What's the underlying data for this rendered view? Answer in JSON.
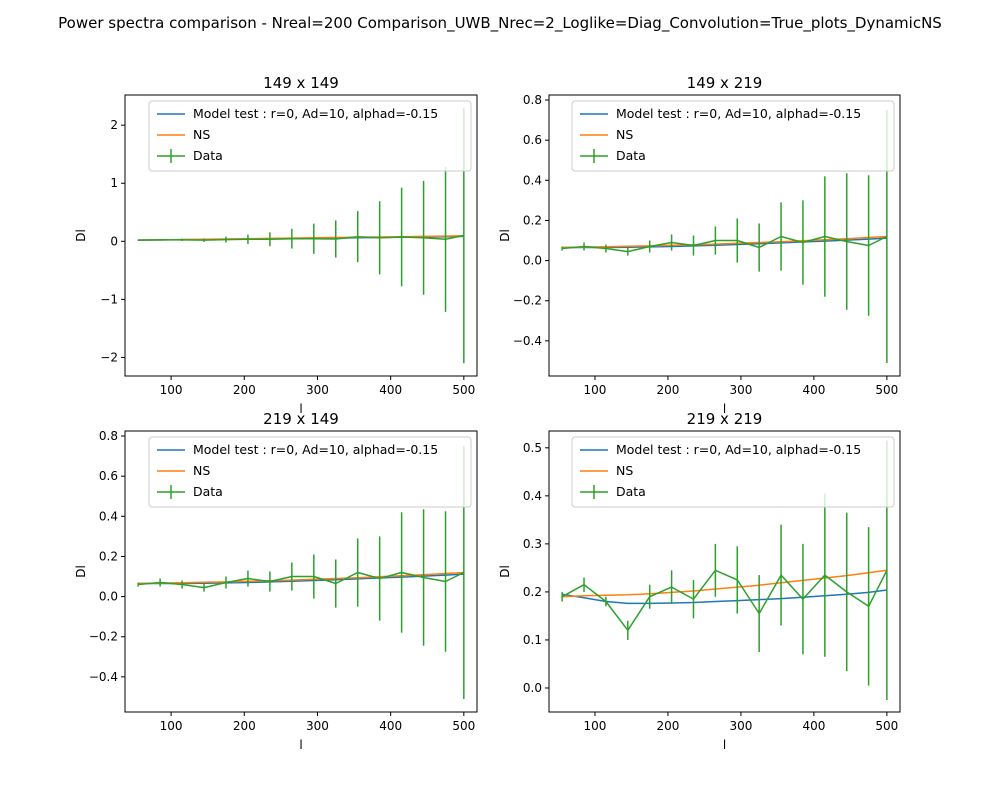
{
  "suptitle": "Power spectra comparison - Nreal=200 Comparison_UWB_Nrec=2_Loglike=Diag_Convolution=True_plots_DynamicNS",
  "colors": {
    "model": "#1f77b4",
    "ns": "#ff7f0e",
    "data": "#2ca02c"
  },
  "chart_data": [
    {
      "type": "line",
      "title": "149 x 149",
      "xlabel": "l",
      "ylabel": "Dl",
      "xlim": [
        37,
        518
      ],
      "ylim": [
        -2.32,
        2.52
      ],
      "xticks": [
        100,
        200,
        300,
        400,
        500
      ],
      "yticks": [
        -2,
        -1,
        0,
        1,
        2
      ],
      "legend": [
        "Model test : r=0, Ad=10, alphad=-0.15",
        "NS",
        "Data"
      ],
      "legend_position": "top-right",
      "x": [
        55,
        85,
        115,
        145,
        175,
        205,
        235,
        265,
        295,
        325,
        355,
        385,
        415,
        445,
        475,
        500
      ],
      "series": [
        {
          "name": "Model test : r=0, Ad=10, alphad=-0.15",
          "values": [
            0.02,
            0.025,
            0.03,
            0.03,
            0.035,
            0.04,
            0.045,
            0.05,
            0.055,
            0.055,
            0.06,
            0.065,
            0.07,
            0.075,
            0.08,
            0.085
          ]
        },
        {
          "name": "NS",
          "values": [
            0.02,
            0.025,
            0.03,
            0.035,
            0.04,
            0.045,
            0.05,
            0.055,
            0.06,
            0.065,
            0.07,
            0.075,
            0.08,
            0.085,
            0.09,
            0.095
          ]
        },
        {
          "name": "Data",
          "values": [
            0.02,
            0.025,
            0.025,
            0.02,
            0.03,
            0.035,
            0.035,
            0.045,
            0.045,
            0.04,
            0.08,
            0.06,
            0.075,
            0.06,
            0.035,
            0.1
          ],
          "errors": [
            0.01,
            0.015,
            0.02,
            0.03,
            0.05,
            0.08,
            0.12,
            0.17,
            0.26,
            0.32,
            0.44,
            0.63,
            0.85,
            0.98,
            1.25,
            2.2
          ]
        }
      ]
    },
    {
      "type": "line",
      "title": "149 x 219",
      "xlabel": "l",
      "ylabel": "Dl",
      "xlim": [
        37,
        518
      ],
      "ylim": [
        -0.575,
        0.825
      ],
      "xticks": [
        100,
        200,
        300,
        400,
        500
      ],
      "yticks": [
        -0.4,
        -0.2,
        0.0,
        0.2,
        0.4,
        0.6,
        0.8
      ],
      "legend": [
        "Model test : r=0, Ad=10, alphad=-0.15",
        "NS",
        "Data"
      ],
      "legend_position": "top-right",
      "x": [
        55,
        85,
        115,
        145,
        175,
        205,
        235,
        265,
        295,
        325,
        355,
        385,
        415,
        445,
        475,
        500
      ],
      "series": [
        {
          "name": "Model test : r=0, Ad=10, alphad=-0.15",
          "values": [
            0.065,
            0.065,
            0.065,
            0.066,
            0.068,
            0.07,
            0.073,
            0.076,
            0.08,
            0.084,
            0.088,
            0.093,
            0.097,
            0.102,
            0.107,
            0.112
          ]
        },
        {
          "name": "NS",
          "values": [
            0.065,
            0.067,
            0.069,
            0.071,
            0.073,
            0.076,
            0.079,
            0.082,
            0.086,
            0.09,
            0.094,
            0.099,
            0.104,
            0.109,
            0.115,
            0.12
          ]
        },
        {
          "name": "Data",
          "values": [
            0.06,
            0.07,
            0.06,
            0.045,
            0.07,
            0.09,
            0.075,
            0.1,
            0.1,
            0.065,
            0.12,
            0.09,
            0.12,
            0.095,
            0.075,
            0.12
          ],
          "errors": [
            0.01,
            0.02,
            0.02,
            0.02,
            0.03,
            0.04,
            0.05,
            0.07,
            0.11,
            0.12,
            0.17,
            0.21,
            0.3,
            0.34,
            0.35,
            0.63
          ]
        }
      ]
    },
    {
      "type": "line",
      "title": "219 x 149",
      "xlabel": "l",
      "ylabel": "Dl",
      "xlim": [
        37,
        518
      ],
      "ylim": [
        -0.575,
        0.825
      ],
      "xticks": [
        100,
        200,
        300,
        400,
        500
      ],
      "yticks": [
        -0.4,
        -0.2,
        0.0,
        0.2,
        0.4,
        0.6,
        0.8
      ],
      "legend": [
        "Model test : r=0, Ad=10, alphad=-0.15",
        "NS",
        "Data"
      ],
      "legend_position": "top-right",
      "x": [
        55,
        85,
        115,
        145,
        175,
        205,
        235,
        265,
        295,
        325,
        355,
        385,
        415,
        445,
        475,
        500
      ],
      "series": [
        {
          "name": "Model test : r=0, Ad=10, alphad=-0.15",
          "values": [
            0.065,
            0.065,
            0.065,
            0.066,
            0.068,
            0.07,
            0.073,
            0.076,
            0.08,
            0.084,
            0.088,
            0.093,
            0.097,
            0.102,
            0.107,
            0.112
          ]
        },
        {
          "name": "NS",
          "values": [
            0.065,
            0.067,
            0.069,
            0.071,
            0.073,
            0.076,
            0.079,
            0.082,
            0.086,
            0.09,
            0.094,
            0.099,
            0.104,
            0.109,
            0.115,
            0.12
          ]
        },
        {
          "name": "Data",
          "values": [
            0.06,
            0.07,
            0.06,
            0.045,
            0.07,
            0.09,
            0.075,
            0.1,
            0.1,
            0.065,
            0.12,
            0.09,
            0.12,
            0.095,
            0.075,
            0.12
          ],
          "errors": [
            0.01,
            0.02,
            0.02,
            0.02,
            0.03,
            0.04,
            0.05,
            0.07,
            0.11,
            0.12,
            0.17,
            0.21,
            0.3,
            0.34,
            0.35,
            0.63
          ]
        }
      ]
    },
    {
      "type": "line",
      "title": "219 x 219",
      "xlabel": "l",
      "ylabel": "Dl",
      "xlim": [
        37,
        518
      ],
      "ylim": [
        -0.05,
        0.535
      ],
      "xticks": [
        100,
        200,
        300,
        400,
        500
      ],
      "yticks": [
        0.0,
        0.1,
        0.2,
        0.3,
        0.4,
        0.5
      ],
      "legend": [
        "Model test : r=0, Ad=10, alphad=-0.15",
        "NS",
        "Data"
      ],
      "legend_position": "top-right",
      "x": [
        55,
        85,
        115,
        145,
        175,
        205,
        235,
        265,
        295,
        325,
        355,
        385,
        415,
        445,
        475,
        500
      ],
      "series": [
        {
          "name": "Model test : r=0, Ad=10, alphad=-0.15",
          "values": [
            0.195,
            0.188,
            0.18,
            0.176,
            0.176,
            0.177,
            0.178,
            0.18,
            0.182,
            0.184,
            0.186,
            0.189,
            0.192,
            0.195,
            0.199,
            0.204
          ]
        },
        {
          "name": "NS",
          "values": [
            0.19,
            0.192,
            0.193,
            0.194,
            0.196,
            0.199,
            0.202,
            0.206,
            0.21,
            0.214,
            0.219,
            0.224,
            0.229,
            0.234,
            0.24,
            0.245
          ]
        },
        {
          "name": "Data",
          "values": [
            0.19,
            0.215,
            0.18,
            0.12,
            0.19,
            0.21,
            0.185,
            0.245,
            0.225,
            0.155,
            0.235,
            0.185,
            0.235,
            0.2,
            0.17,
            0.245
          ],
          "errors": [
            0.01,
            0.015,
            0.01,
            0.02,
            0.025,
            0.035,
            0.04,
            0.055,
            0.07,
            0.08,
            0.105,
            0.115,
            0.17,
            0.165,
            0.165,
            0.27
          ]
        }
      ]
    }
  ]
}
